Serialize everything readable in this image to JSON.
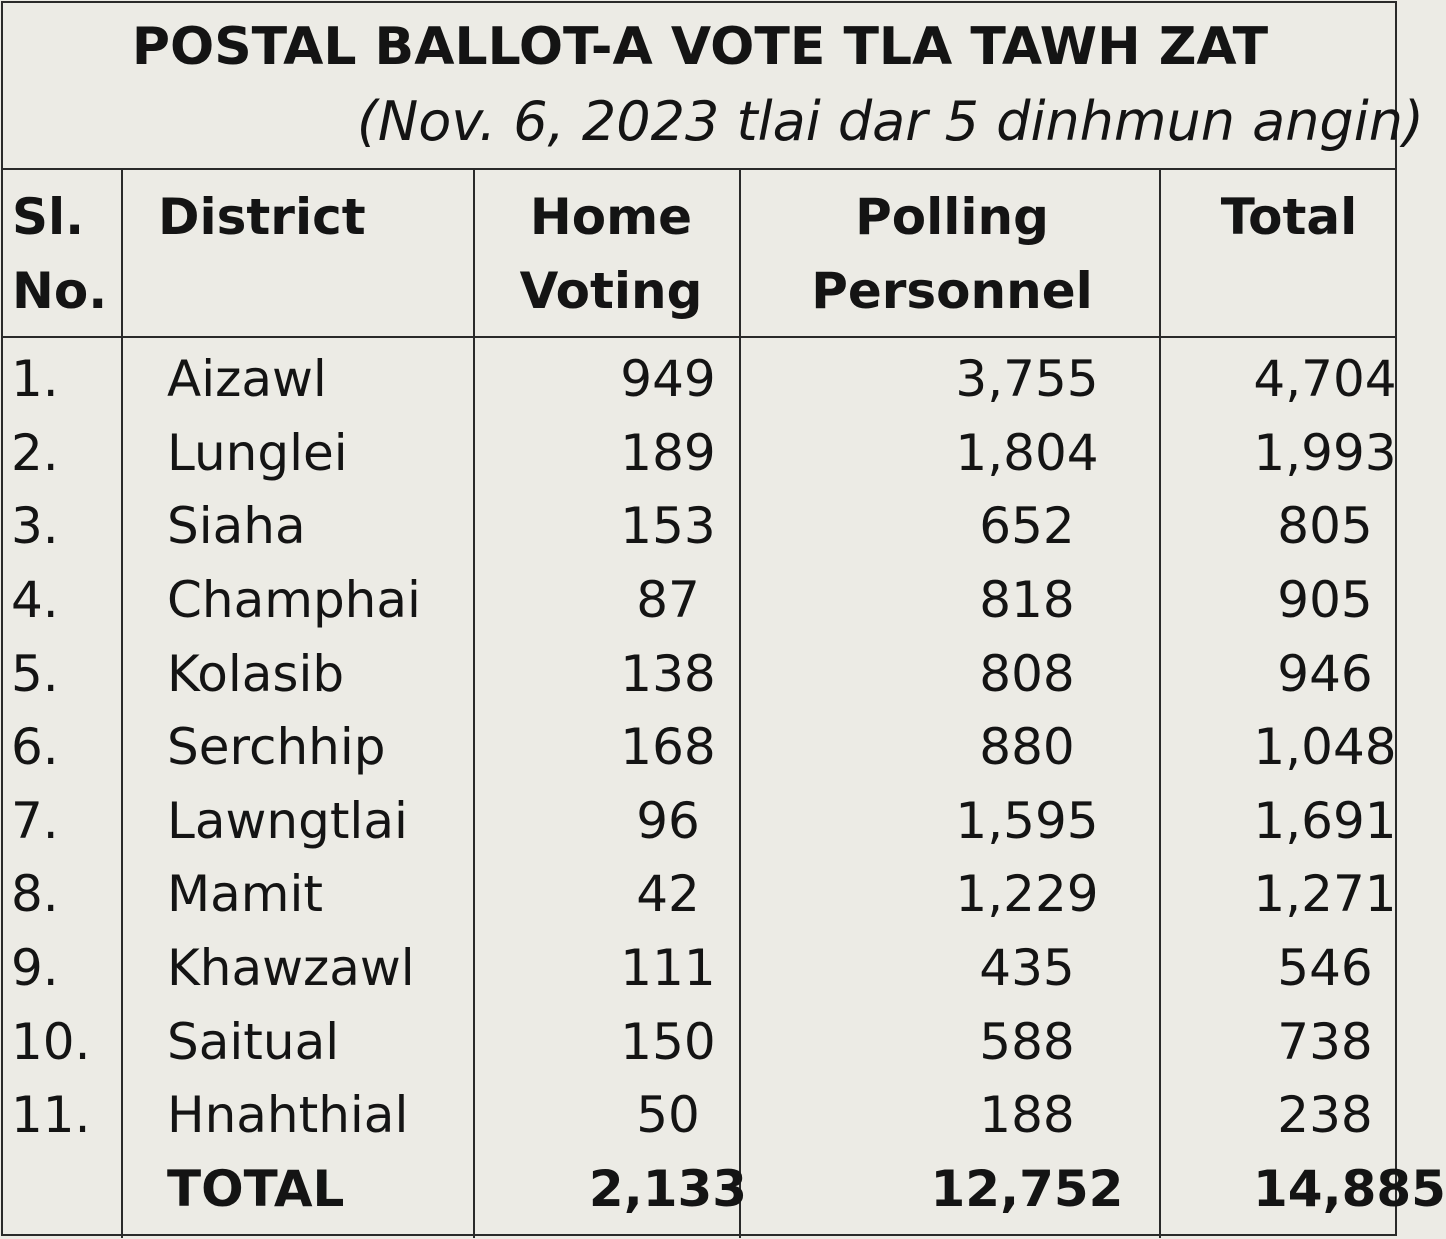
{
  "title": "POSTAL BALLOT-A VOTE TLA TAWH ZAT",
  "subtitle": "(Nov. 6, 2023 tlai dar 5 dinhmun angin)",
  "headers": {
    "sl_line1": "Sl.",
    "sl_line2": "No.",
    "district": "District",
    "home_line1": "Home",
    "home_line2": "Voting",
    "poll_line1": "Polling",
    "poll_line2": "Personnel",
    "total": "Total"
  },
  "rows": [
    {
      "sl": "1.",
      "district": "Aizawl",
      "home": "949",
      "polling": "3,755",
      "total": "4,704"
    },
    {
      "sl": "2.",
      "district": "Lunglei",
      "home": "189",
      "polling": "1,804",
      "total": "1,993"
    },
    {
      "sl": "3.",
      "district": "Siaha",
      "home": "153",
      "polling": "652",
      "total": "805"
    },
    {
      "sl": "4.",
      "district": "Champhai",
      "home": "87",
      "polling": "818",
      "total": "905"
    },
    {
      "sl": "5.",
      "district": "Kolasib",
      "home": "138",
      "polling": "808",
      "total": "946"
    },
    {
      "sl": "6.",
      "district": "Serchhip",
      "home": "168",
      "polling": "880",
      "total": "1,048"
    },
    {
      "sl": "7.",
      "district": "Lawngtlai",
      "home": "96",
      "polling": "1,595",
      "total": "1,691"
    },
    {
      "sl": "8.",
      "district": "Mamit",
      "home": "42",
      "polling": "1,229",
      "total": "1,271"
    },
    {
      "sl": "9.",
      "district": "Khawzawl",
      "home": "111",
      "polling": "435",
      "total": "546"
    },
    {
      "sl": "10.",
      "district": "Saitual",
      "home": "150",
      "polling": "588",
      "total": "738"
    },
    {
      "sl": "11.",
      "district": "Hnahthial",
      "home": "50",
      "polling": "188",
      "total": "238"
    }
  ],
  "total_row": {
    "label": "TOTAL",
    "home": "2,133",
    "polling": "12,752",
    "total": "14,885"
  }
}
